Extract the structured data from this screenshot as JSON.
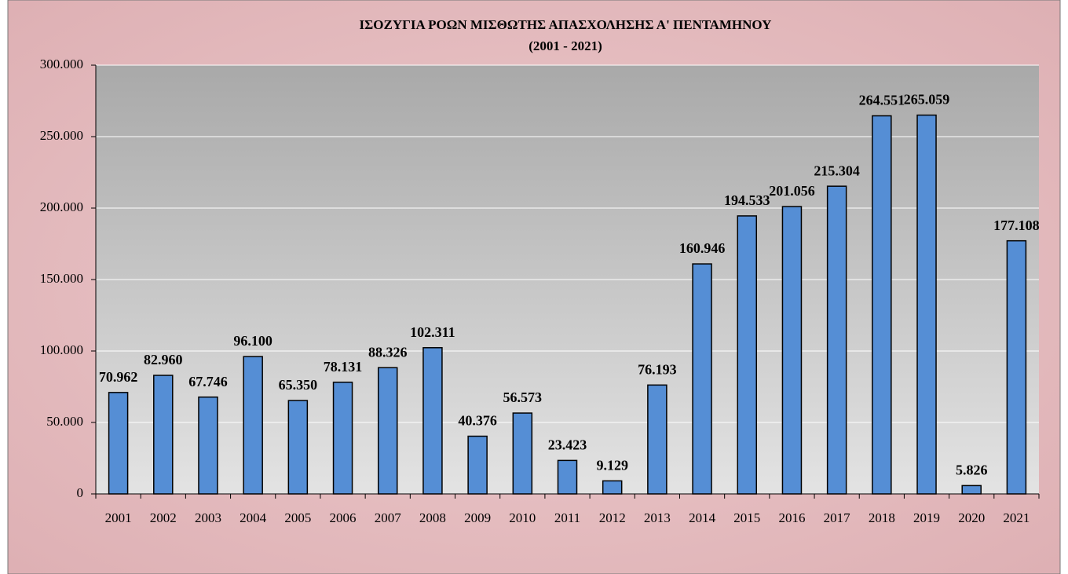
{
  "chart_data": {
    "type": "bar",
    "title": "ΙΣΟΖΥΓΙΑ ΡΟΩΝ ΜΙΣΘΩΤΗΣ ΑΠΑΣΧΟΛΗΣΗΣ Α' ΠΕΝΤΑΜΗΝΟΥ",
    "subtitle": "(2001 - 2021)",
    "categories": [
      "2001",
      "2002",
      "2003",
      "2004",
      "2005",
      "2006",
      "2007",
      "2008",
      "2009",
      "2010",
      "2011",
      "2012",
      "2013",
      "2014",
      "2015",
      "2016",
      "2017",
      "2018",
      "2019",
      "2020",
      "2021"
    ],
    "values": [
      70962,
      82960,
      67746,
      96100,
      65350,
      78131,
      88326,
      102311,
      40376,
      56573,
      23423,
      9129,
      76193,
      160946,
      194533,
      201056,
      215304,
      264551,
      265059,
      5826,
      177108
    ],
    "value_labels": [
      "70.962",
      "82.960",
      "67.746",
      "96.100",
      "65.350",
      "78.131",
      "88.326",
      "102.311",
      "40.376",
      "56.573",
      "23.423",
      "9.129",
      "76.193",
      "160.946",
      "194.533",
      "201.056",
      "215.304",
      "264.551",
      "265.059",
      "5.826",
      "177.108"
    ],
    "color": "#558ed5",
    "ylim": [
      0,
      300000
    ],
    "yticks": [
      0,
      {
        "value": 50000,
        "label": "50.000"
      },
      {
        "value": 100000,
        "label": "100.000"
      },
      {
        "value": 150000,
        "label": "150.000"
      },
      {
        "value": 200000,
        "label": "200.000"
      },
      {
        "value": 250000,
        "label": "250.000"
      },
      {
        "value": 300000,
        "label": "300.000"
      }
    ],
    "grid": true
  }
}
